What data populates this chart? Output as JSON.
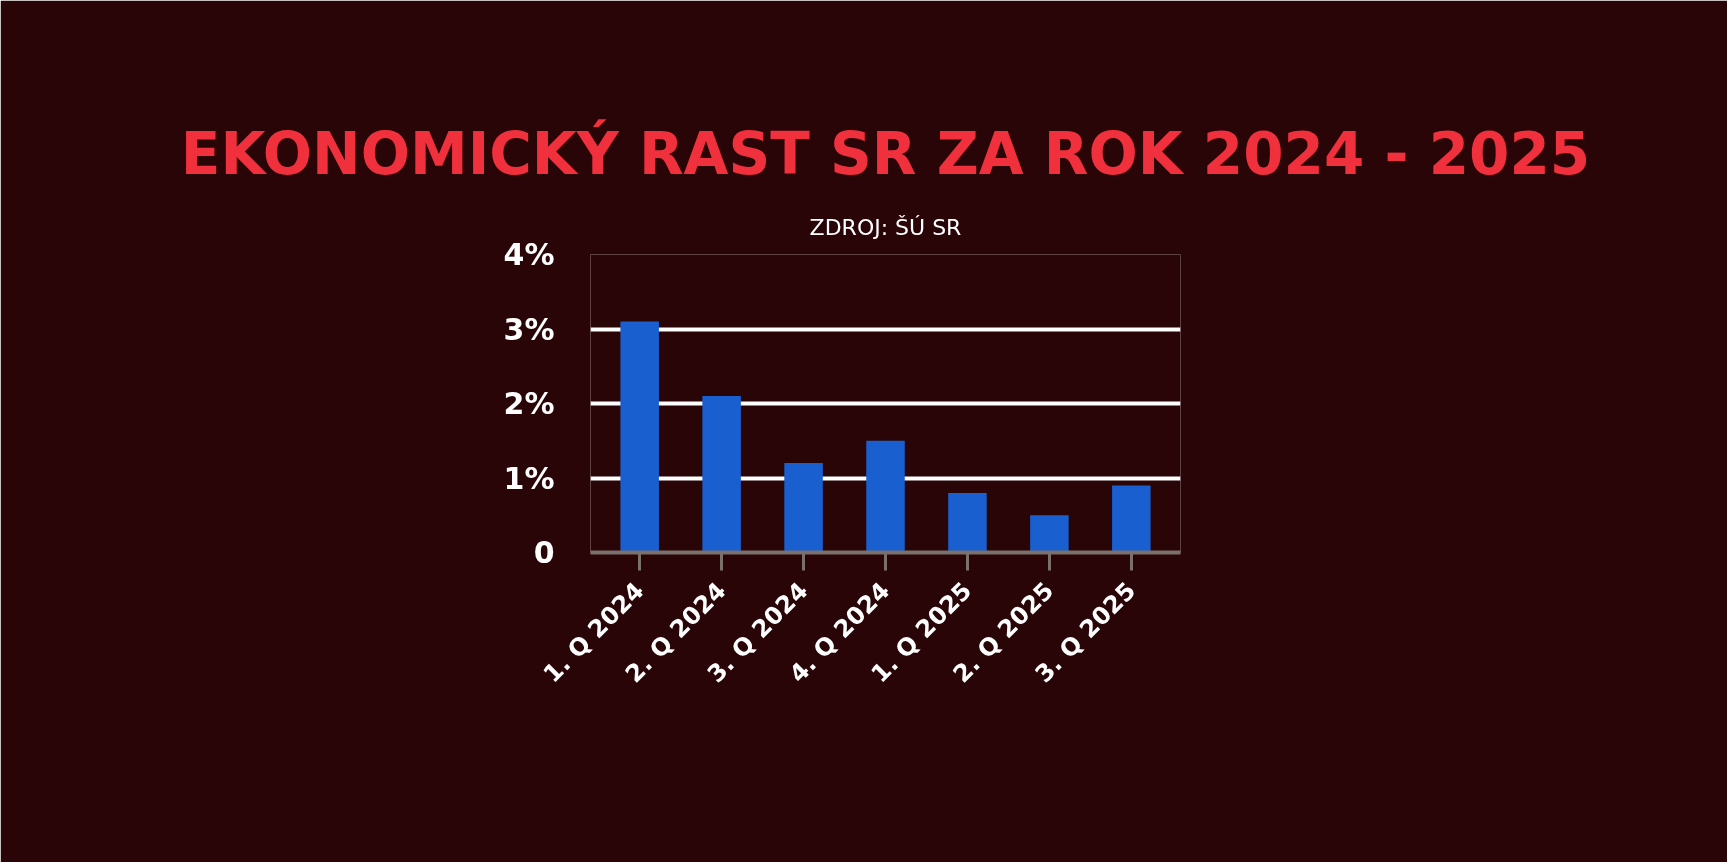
{
  "chart_data": {
    "type": "bar",
    "title": "EKONOMICKÝ RAST SR ZA ROK 2024 - 2025",
    "annotations": [
      "ZDROJ: ŠÚ SR"
    ],
    "categories": [
      "1. Q 2024",
      "2. Q 2024",
      "3. Q 2024",
      "4. Q 2024",
      "1. Q 2025",
      "2. Q 2025",
      "3. Q 2025"
    ],
    "values": [
      3.1,
      2.1,
      1.2,
      1.5,
      0.8,
      0.5,
      0.9
    ],
    "color": "#1a5fd0",
    "ylim": [
      0,
      4
    ],
    "yticks": [
      0,
      {
        "value": 1,
        "label": "1%"
      },
      {
        "value": 2,
        "label": "2%"
      },
      {
        "value": 3,
        "label": "3%"
      },
      {
        "value": 4,
        "label": "4%"
      }
    ],
    "grid": "y"
  }
}
